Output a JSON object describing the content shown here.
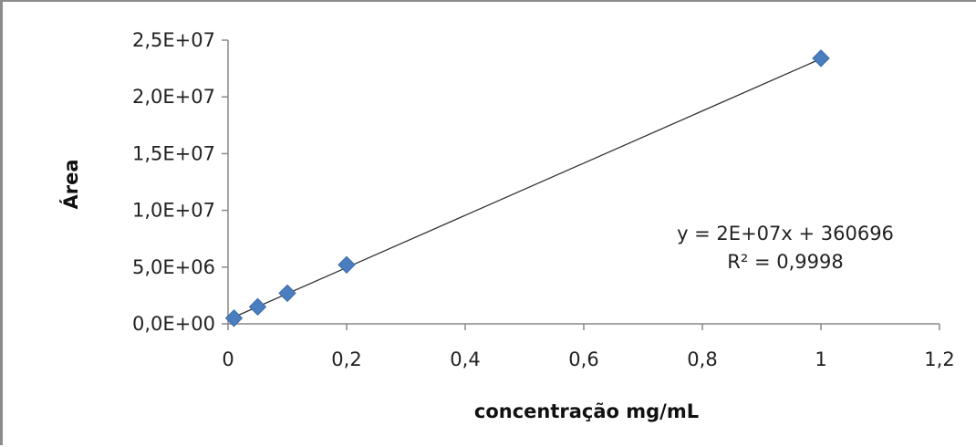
{
  "chart_data": {
    "type": "scatter",
    "title": "",
    "xlabel": "concentração mg/mL",
    "ylabel": "Área",
    "xlim": [
      0,
      1.2
    ],
    "ylim": [
      0,
      25000000
    ],
    "x_ticks": [
      0,
      0.2,
      0.4,
      0.6,
      0.8,
      1,
      1.2
    ],
    "x_tick_labels": [
      "0",
      "0,2",
      "0,4",
      "0,6",
      "0,8",
      "1",
      "1,2"
    ],
    "y_ticks": [
      0,
      5000000,
      10000000,
      15000000,
      20000000,
      25000000
    ],
    "y_tick_labels": [
      "0,0E+00",
      "5,0E+06",
      "1,0E+07",
      "1,5E+07",
      "2,0E+07",
      "2,5E+07"
    ],
    "grid": false,
    "legend": "none",
    "series": [
      {
        "marker": "diamond",
        "color": "#4a7ebf",
        "x": [
          0.01,
          0.05,
          0.1,
          0.2,
          1.0
        ],
        "y": [
          500000,
          1500000,
          2700000,
          5200000,
          23400000
        ]
      }
    ],
    "trendline": {
      "type": "linear",
      "slope": 23000000,
      "intercept": 360696,
      "x_range": [
        0.01,
        1.0
      ],
      "color": "#333333"
    },
    "annotations": {
      "equation": "y = 2E+07x + 360696",
      "r_squared": "R² = 0,9998"
    }
  }
}
